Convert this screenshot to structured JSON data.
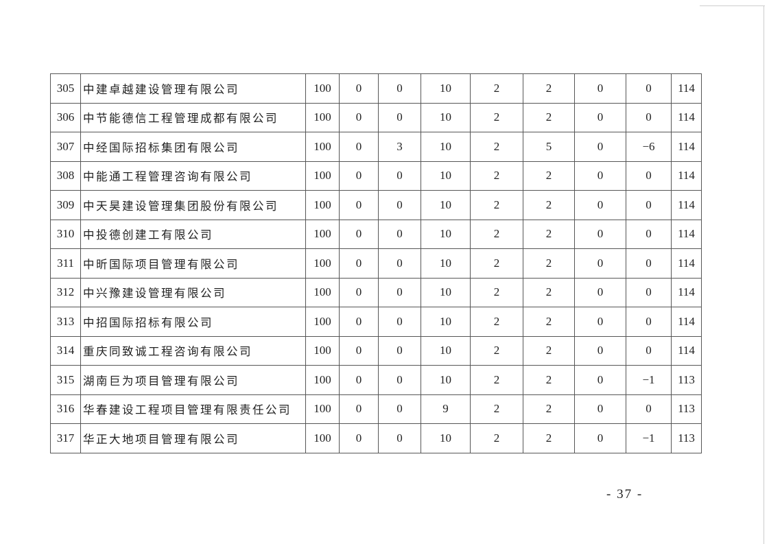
{
  "rows": [
    {
      "no": "305",
      "name": "中建卓越建设管理有限公司",
      "values": [
        "100",
        "0",
        "0",
        "10",
        "2",
        "2",
        "0",
        "0",
        "114"
      ]
    },
    {
      "no": "306",
      "name": "中节能德信工程管理成都有限公司",
      "values": [
        "100",
        "0",
        "0",
        "10",
        "2",
        "2",
        "0",
        "0",
        "114"
      ]
    },
    {
      "no": "307",
      "name": "中经国际招标集团有限公司",
      "values": [
        "100",
        "0",
        "3",
        "10",
        "2",
        "5",
        "0",
        "−6",
        "114"
      ]
    },
    {
      "no": "308",
      "name": "中能通工程管理咨询有限公司",
      "values": [
        "100",
        "0",
        "0",
        "10",
        "2",
        "2",
        "0",
        "0",
        "114"
      ]
    },
    {
      "no": "309",
      "name": "中天昊建设管理集团股份有限公司",
      "values": [
        "100",
        "0",
        "0",
        "10",
        "2",
        "2",
        "0",
        "0",
        "114"
      ]
    },
    {
      "no": "310",
      "name": "中投德创建工有限公司",
      "values": [
        "100",
        "0",
        "0",
        "10",
        "2",
        "2",
        "0",
        "0",
        "114"
      ]
    },
    {
      "no": "311",
      "name": "中昕国际项目管理有限公司",
      "values": [
        "100",
        "0",
        "0",
        "10",
        "2",
        "2",
        "0",
        "0",
        "114"
      ]
    },
    {
      "no": "312",
      "name": "中兴豫建设管理有限公司",
      "values": [
        "100",
        "0",
        "0",
        "10",
        "2",
        "2",
        "0",
        "0",
        "114"
      ]
    },
    {
      "no": "313",
      "name": "中招国际招标有限公司",
      "values": [
        "100",
        "0",
        "0",
        "10",
        "2",
        "2",
        "0",
        "0",
        "114"
      ]
    },
    {
      "no": "314",
      "name": "重庆同致诚工程咨询有限公司",
      "values": [
        "100",
        "0",
        "0",
        "10",
        "2",
        "2",
        "0",
        "0",
        "114"
      ]
    },
    {
      "no": "315",
      "name": "湖南巨为项目管理有限公司",
      "values": [
        "100",
        "0",
        "0",
        "10",
        "2",
        "2",
        "0",
        "−1",
        "113"
      ]
    },
    {
      "no": "316",
      "name": "华春建设工程项目管理有限责任公司",
      "values": [
        "100",
        "0",
        "0",
        "9",
        "2",
        "2",
        "0",
        "0",
        "113"
      ]
    },
    {
      "no": "317",
      "name": "华正大地项目管理有限公司",
      "values": [
        "100",
        "0",
        "0",
        "10",
        "2",
        "2",
        "0",
        "−1",
        "113"
      ]
    }
  ],
  "page_number": "- 37 -"
}
